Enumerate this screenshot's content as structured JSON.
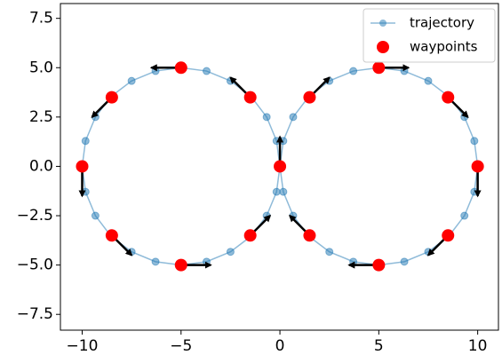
{
  "chart_data": {
    "type": "line",
    "xlim": [
      -11.1,
      11.05
    ],
    "ylim": [
      -8.3,
      8.25
    ],
    "xticks": [
      {
        "value": -10,
        "label": "−10"
      },
      {
        "value": -5,
        "label": "−5"
      },
      0,
      5,
      10
    ],
    "yticks": [
      {
        "value": -7.5,
        "label": "−7.5"
      },
      {
        "value": -5,
        "label": "−5.0"
      },
      {
        "value": -2.5,
        "label": "−2.5"
      },
      {
        "value": 0,
        "label": "0.0"
      },
      2.5,
      {
        "value": 5,
        "label": "5.0"
      },
      7.5
    ],
    "legend": "upper right",
    "series": [
      {
        "name": "trajectory",
        "type": "line",
        "color": "#1f77b4",
        "x": [
          0,
          0.17,
          0.67,
          1.46,
          2.5,
          3.71,
          5,
          6.29,
          7.5,
          8.54,
          9.33,
          9.83,
          10,
          9.83,
          9.33,
          8.54,
          7.5,
          6.29,
          5,
          3.71,
          2.5,
          1.46,
          0.67,
          0.17,
          0,
          -0.17,
          -0.67,
          -1.46,
          -2.5,
          -3.71,
          -5,
          -6.29,
          -7.5,
          -8.54,
          -9.33,
          -9.83,
          -10,
          -9.83,
          -9.33,
          -8.54,
          -7.5,
          -6.29,
          -5,
          -3.71,
          -2.5,
          -1.46,
          -0.67,
          -0.17,
          0
        ],
        "y": [
          0,
          1.29,
          2.5,
          3.54,
          4.33,
          4.83,
          5,
          4.83,
          4.33,
          3.54,
          2.5,
          1.29,
          0,
          -1.29,
          -2.5,
          -3.54,
          -4.33,
          -4.83,
          -5,
          -4.83,
          -4.33,
          -3.54,
          -2.5,
          -1.29,
          0,
          1.29,
          2.5,
          3.54,
          4.33,
          4.83,
          5,
          4.83,
          4.33,
          3.54,
          2.5,
          1.29,
          0,
          -1.29,
          -2.5,
          -3.54,
          -4.33,
          -4.83,
          -5,
          -4.83,
          -4.33,
          -3.54,
          -2.5,
          -1.29,
          0
        ]
      },
      {
        "name": "waypoints",
        "type": "scatter",
        "color": "#ff0000",
        "arrow_color": "#000000",
        "x": [
          0,
          1.5,
          5,
          8.5,
          10,
          8.5,
          5,
          1.5,
          -1.5,
          -5,
          -8.5,
          -10,
          -8.5,
          -5,
          -1.5
        ],
        "y": [
          0,
          3.5,
          5,
          3.5,
          0,
          -3.5,
          -5,
          -3.5,
          3.5,
          5,
          3.5,
          0,
          -3.5,
          -5,
          -3.5
        ],
        "u": [
          0,
          1,
          1.5,
          1,
          0,
          -1,
          -1.5,
          -1,
          -1,
          -1.5,
          -1,
          0,
          1,
          1.5,
          1
        ],
        "v": [
          1.5,
          1,
          0,
          -1,
          -1.5,
          -1,
          0,
          1,
          1,
          0,
          -1,
          -1.5,
          -1,
          0,
          1
        ]
      }
    ]
  }
}
